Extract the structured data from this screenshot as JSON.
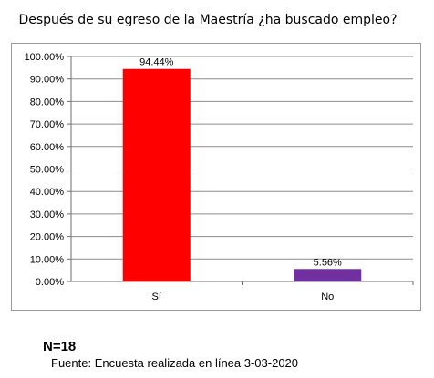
{
  "title": "Después de su egreso de la Maestría ¿ha buscado empleo?",
  "sample_size": "N=18",
  "source": "Fuente: Encuesta realizada en línea 3-03-2020",
  "colors": {
    "si": "#ff0000",
    "no": "#7030a0",
    "grid": "#8c8c8c",
    "axis": "#6e6e6e"
  },
  "chart_data": {
    "type": "bar",
    "title": "Después de su egreso de la Maestría ¿ha buscado empleo?",
    "categories": [
      "Sí",
      "No"
    ],
    "values": [
      94.44,
      5.56
    ],
    "data_labels": [
      "94.44%",
      "5.56%"
    ],
    "bar_colors": [
      "#ff0000",
      "#7030a0"
    ],
    "ylim": [
      0,
      100
    ],
    "yticks": [
      "0.00%",
      "10.00%",
      "20.00%",
      "30.00%",
      "40.00%",
      "50.00%",
      "60.00%",
      "70.00%",
      "80.00%",
      "90.00%",
      "100.00%"
    ],
    "grid": true,
    "legend": "none",
    "xlabel": "",
    "ylabel": ""
  }
}
